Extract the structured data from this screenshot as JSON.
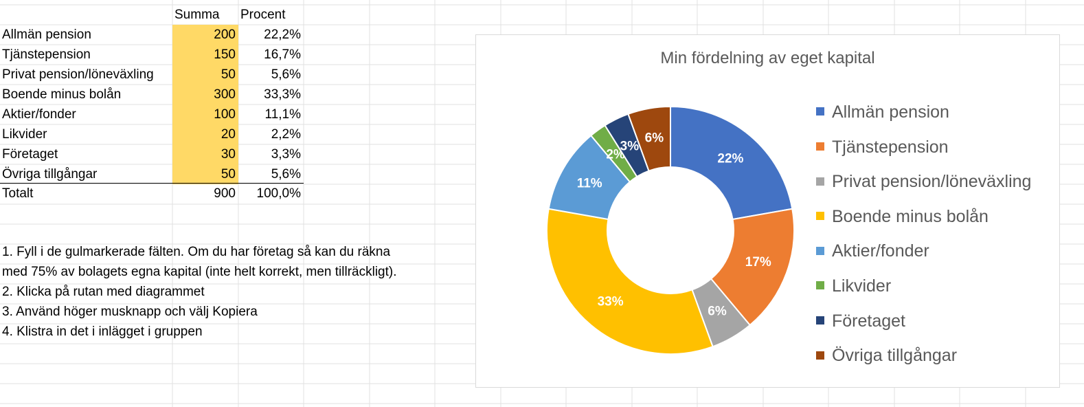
{
  "sheet": {
    "headers": {
      "summa": "Summa",
      "procent": "Procent"
    },
    "rows": [
      {
        "label": "Allmän pension",
        "summa": "200",
        "procent": "22,2%"
      },
      {
        "label": "Tjänstepension",
        "summa": "150",
        "procent": "16,7%"
      },
      {
        "label": "Privat pension/löneväxling",
        "summa": "50",
        "procent": "5,6%"
      },
      {
        "label": "Boende minus bolån",
        "summa": "300",
        "procent": "33,3%"
      },
      {
        "label": "Aktier/fonder",
        "summa": "100",
        "procent": "11,1%"
      },
      {
        "label": "Likvider",
        "summa": "20",
        "procent": "2,2%"
      },
      {
        "label": "Företaget",
        "summa": "30",
        "procent": "3,3%"
      },
      {
        "label": "Övriga tillgångar",
        "summa": "50",
        "procent": "5,6%"
      }
    ],
    "total": {
      "label": "Totalt",
      "summa": "900",
      "procent": "100,0%"
    },
    "input_highlight_color": "#FFD966",
    "instructions": [
      "1. Fyll i de gulmarkerade fälten. Om du har företag så kan du räkna",
      "med 75% av bolagets egna kapital (inte helt korrekt, men tillräckligt).",
      "2. Klicka på rutan med diagrammet",
      "3. Använd höger musknapp och välj Kopiera",
      "4. Klistra in det i inlägget i gruppen"
    ]
  },
  "chart_data": {
    "type": "pie",
    "variant": "donut",
    "title": "Min fördelning av eget kapital",
    "categories": [
      "Allmän pension",
      "Tjänstepension",
      "Privat pension/löneväxling",
      "Boende minus bolån",
      "Aktier/fonder",
      "Likvider",
      "Företaget",
      "Övriga tillgångar"
    ],
    "values": [
      200,
      150,
      50,
      300,
      100,
      20,
      30,
      50
    ],
    "data_labels": [
      "22%",
      "17%",
      "6%",
      "33%",
      "11%",
      "2%",
      "3%",
      "6%"
    ],
    "colors": [
      "#4472C4",
      "#ED7D31",
      "#A5A5A5",
      "#FFC000",
      "#5B9BD5",
      "#70AD47",
      "#264478",
      "#9E480E"
    ],
    "legend_position": "right"
  }
}
